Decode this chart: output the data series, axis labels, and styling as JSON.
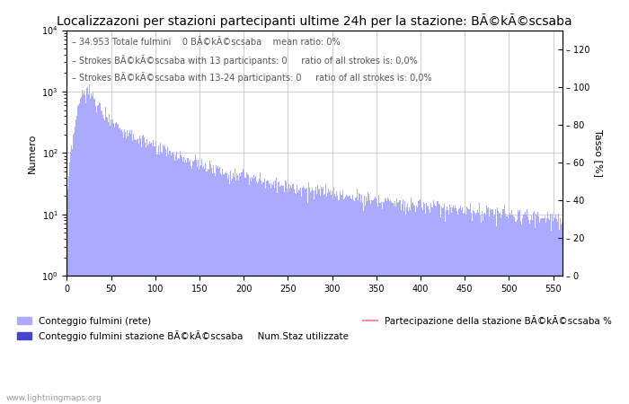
{
  "title": "Localizzazoni per stazioni partecipanti ultime 24h per la stazione: BÃ©kÃ©scsaba",
  "annotation_lines": [
    "34.953 Totale fulmini    0 BÃ©kÃ©scsaba    mean ratio: 0%",
    "Strokes BÃ©kÃ©scsaba with 13 participants: 0     ratio of all strokes is: 0,0%",
    "Strokes BÃ©kÃ©scsaba with 13-24 participants: 0     ratio of all strokes is: 0,0%"
  ],
  "xlabel": "Num.Staz utilizzate",
  "ylabel_left": "Numero",
  "ylabel_right": "Tasso [%]",
  "xlim": [
    0,
    560
  ],
  "ylim_left": [
    1,
    10000
  ],
  "ylim_right": [
    0,
    130
  ],
  "xticks": [
    0,
    50,
    100,
    150,
    200,
    250,
    300,
    350,
    400,
    450,
    500,
    550
  ],
  "yticks_left_log": [
    1,
    10,
    100,
    1000,
    10000
  ],
  "yticks_right": [
    0,
    20,
    40,
    60,
    80,
    100,
    120
  ],
  "bar_color": "#aaaaff",
  "bar_color_station": "#4444cc",
  "line_color": "#ff88aa",
  "grid_color": "#bbbbbb",
  "background_color": "#ffffff",
  "legend_label_rete": "Conteggio fulmini (rete)",
  "legend_label_station": "Conteggio fulmini stazione BÃ©kÃ©scsaba",
  "legend_label_line": "Partecipazione della stazione BÃ©kÃ©scsaba %",
  "legend_label_xlabel": "Num.Staz utilizzate",
  "watermark": "www.lightningmaps.org",
  "title_fontsize": 10,
  "label_fontsize": 8,
  "annotation_fontsize": 7,
  "tick_fontsize": 7
}
